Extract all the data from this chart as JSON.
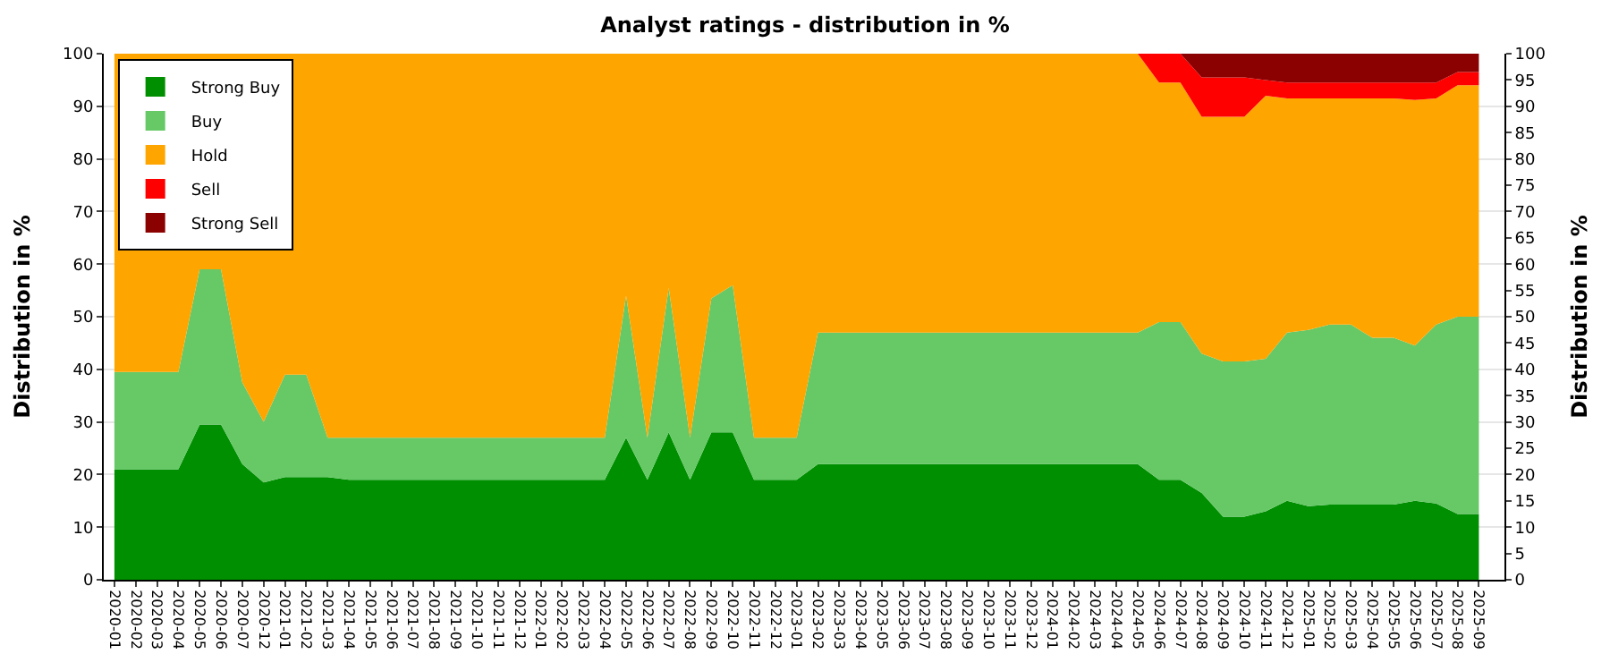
{
  "chart_data": {
    "type": "area",
    "stacked": true,
    "title": "Analyst ratings - distribution in %",
    "ylabel": "Distribution in %",
    "y2label": "Distribution in %",
    "categories": [
      "2020-01",
      "2020-02",
      "2020-03",
      "2020-04",
      "2020-05",
      "2020-06",
      "2020-07",
      "2020-12",
      "2021-01",
      "2021-02",
      "2021-03",
      "2021-04",
      "2021-05",
      "2021-06",
      "2021-07",
      "2021-08",
      "2021-09",
      "2021-10",
      "2021-11",
      "2021-12",
      "2022-01",
      "2022-02",
      "2022-03",
      "2022-04",
      "2022-05",
      "2022-06",
      "2022-07",
      "2022-08",
      "2022-09",
      "2022-10",
      "2022-11",
      "2022-12",
      "2023-01",
      "2023-02",
      "2023-03",
      "2023-04",
      "2023-05",
      "2023-06",
      "2023-07",
      "2023-08",
      "2023-09",
      "2023-10",
      "2023-11",
      "2023-12",
      "2024-01",
      "2024-02",
      "2024-03",
      "2024-04",
      "2024-05",
      "2024-06",
      "2024-07",
      "2024-08",
      "2024-09",
      "2024-10",
      "2024-11",
      "2024-12",
      "2025-01",
      "2025-02",
      "2025-03",
      "2025-04",
      "2025-05",
      "2025-06",
      "2025-07",
      "2025-08",
      "2025-09"
    ],
    "series": [
      {
        "name": "Strong Buy",
        "color": "#008f00",
        "values": [
          21,
          21,
          21,
          21,
          29.5,
          29.5,
          22,
          18.5,
          19.5,
          19.5,
          19.5,
          19,
          19,
          19,
          19,
          19,
          19,
          19,
          19,
          19,
          19,
          19,
          19,
          19,
          27,
          19,
          28,
          19,
          28,
          28,
          19,
          19,
          19,
          22,
          22,
          22,
          22,
          22,
          22,
          22,
          22,
          22,
          22,
          22,
          22,
          22,
          22,
          22,
          22,
          19,
          19,
          16.5,
          12,
          12,
          13,
          15,
          14,
          14.3,
          14.3,
          14.3,
          14.3,
          15,
          14.5,
          12.5,
          12.5
        ]
      },
      {
        "name": "Buy",
        "color": "#66c966",
        "values": [
          18.5,
          18.5,
          18.5,
          18.5,
          29.5,
          29.5,
          15.5,
          11.5,
          19.5,
          19.5,
          7.5,
          8,
          8,
          8,
          8,
          8,
          8,
          8,
          8,
          8,
          8,
          8,
          8,
          8,
          27,
          8,
          27.5,
          8,
          25.5,
          28,
          8,
          8,
          8,
          25,
          25,
          25,
          25,
          25,
          25,
          25,
          25,
          25,
          25,
          25,
          25,
          25,
          25,
          25,
          25,
          30,
          30,
          26.5,
          29.5,
          29.5,
          29,
          32,
          33.5,
          34.2,
          34.2,
          31.7,
          31.7,
          29.5,
          34,
          37.5,
          37.5
        ]
      },
      {
        "name": "Hold",
        "color": "#ffa500",
        "values": [
          60.5,
          60.5,
          60.5,
          60.5,
          41,
          41,
          62.5,
          70,
          61,
          61,
          73,
          73,
          73,
          73,
          73,
          73,
          73,
          73,
          73,
          73,
          73,
          73,
          73,
          73,
          46,
          73,
          44.5,
          73,
          46.5,
          44,
          73,
          73,
          73,
          53,
          53,
          53,
          53,
          53,
          53,
          53,
          53,
          53,
          53,
          53,
          53,
          53,
          53,
          53,
          53,
          45.5,
          45.5,
          45,
          46.5,
          46.5,
          50,
          44.5,
          44,
          43,
          43,
          45.5,
          45.5,
          46.7,
          43,
          44,
          44
        ]
      },
      {
        "name": "Sell",
        "color": "#ff0000",
        "values": [
          0,
          0,
          0,
          0,
          0,
          0,
          0,
          0,
          0,
          0,
          0,
          0,
          0,
          0,
          0,
          0,
          0,
          0,
          0,
          0,
          0,
          0,
          0,
          0,
          0,
          0,
          0,
          0,
          0,
          0,
          0,
          0,
          0,
          0,
          0,
          0,
          0,
          0,
          0,
          0,
          0,
          0,
          0,
          0,
          0,
          0,
          0,
          0,
          0,
          5.5,
          5.5,
          7.5,
          7.5,
          7.5,
          3,
          3,
          3,
          3,
          3,
          3,
          3,
          3.3,
          3,
          2.5,
          2.5
        ]
      },
      {
        "name": "Strong Sell",
        "color": "#8b0000",
        "values": [
          0,
          0,
          0,
          0,
          0,
          0,
          0,
          0,
          0,
          0,
          0,
          0,
          0,
          0,
          0,
          0,
          0,
          0,
          0,
          0,
          0,
          0,
          0,
          0,
          0,
          0,
          0,
          0,
          0,
          0,
          0,
          0,
          0,
          0,
          0,
          0,
          0,
          0,
          0,
          0,
          0,
          0,
          0,
          0,
          0,
          0,
          0,
          0,
          0,
          0,
          0,
          4.5,
          4.5,
          4.5,
          5,
          5.5,
          5.5,
          5.5,
          5.5,
          5.5,
          5.5,
          5.5,
          5.5,
          3.5,
          3.5
        ]
      }
    ],
    "ylim": [
      0,
      100
    ],
    "yticks": [
      0,
      10,
      20,
      30,
      40,
      50,
      60,
      70,
      80,
      90,
      100
    ],
    "y2lim": [
      0,
      100
    ],
    "y2ticks": [
      0,
      5,
      10,
      15,
      20,
      25,
      30,
      35,
      40,
      45,
      50,
      55,
      60,
      65,
      70,
      75,
      80,
      85,
      90,
      95,
      100
    ],
    "grid": "y",
    "legend": "top left"
  }
}
